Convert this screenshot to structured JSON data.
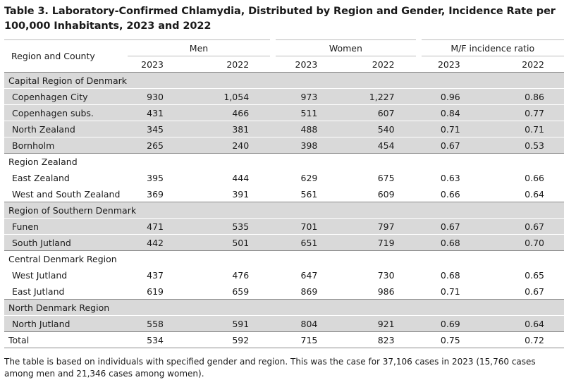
{
  "title_line1": "Table 3. Laboratory-Confirmed Chlamydia, Distributed by Region and Gender, Incidence Rate per",
  "title_line2": "100,000 Inhabitants, 2023 and 2022",
  "header": {
    "region_county": "Region and County",
    "groups": [
      "Men",
      "Women",
      "M/F incidence ratio"
    ],
    "years": [
      "2023",
      "2022",
      "2023",
      "2022",
      "2023",
      "2022"
    ]
  },
  "regions": [
    {
      "name": "Capital Region of Denmark",
      "counties": [
        {
          "name": "Copenhagen City",
          "values": [
            "930",
            "1,054",
            "973",
            "1,227",
            "0.96",
            "0.86"
          ]
        },
        {
          "name": "Copenhagen subs.",
          "values": [
            "431",
            "466",
            "511",
            "607",
            "0.84",
            "0.77"
          ]
        },
        {
          "name": "North Zealand",
          "values": [
            "345",
            "381",
            "488",
            "540",
            "0.71",
            "0.71"
          ]
        },
        {
          "name": "Bornholm",
          "values": [
            "265",
            "240",
            "398",
            "454",
            "0.67",
            "0.53"
          ]
        }
      ]
    },
    {
      "name": "Region Zealand",
      "counties": [
        {
          "name": "East Zealand",
          "values": [
            "395",
            "444",
            "629",
            "675",
            "0.63",
            "0.66"
          ]
        },
        {
          "name": "West and South Zealand",
          "values": [
            "369",
            "391",
            "561",
            "609",
            "0.66",
            "0.64"
          ]
        }
      ]
    },
    {
      "name": "Region of Southern Denmark",
      "counties": [
        {
          "name": "Funen",
          "values": [
            "471",
            "535",
            "701",
            "797",
            "0.67",
            "0.67"
          ]
        },
        {
          "name": "South Jutland",
          "values": [
            "442",
            "501",
            "651",
            "719",
            "0.68",
            "0.70"
          ]
        }
      ]
    },
    {
      "name": "Central Denmark Region",
      "counties": [
        {
          "name": "West Jutland",
          "values": [
            "437",
            "476",
            "647",
            "730",
            "0.68",
            "0.65"
          ]
        },
        {
          "name": "East Jutland",
          "values": [
            "619",
            "659",
            "869",
            "986",
            "0.71",
            "0.67"
          ]
        }
      ]
    },
    {
      "name": "North Denmark Region",
      "counties": [
        {
          "name": "North Jutland",
          "values": [
            "558",
            "591",
            "804",
            "921",
            "0.69",
            "0.64"
          ]
        }
      ]
    }
  ],
  "total": {
    "name": "Total",
    "values": [
      "534",
      "592",
      "715",
      "823",
      "0.75",
      "0.72"
    ]
  },
  "note": "The table is based on individuals with specified gender and region. This was the case for 37,106 cases in 2023 (15,760 cases among men and 21,346 cases among women).",
  "colors": {
    "shade": "#d9d9d9",
    "rule": "#8a8a8a"
  }
}
